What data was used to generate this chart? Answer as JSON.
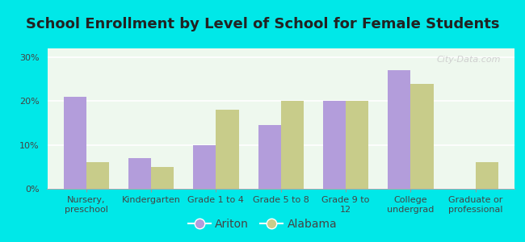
{
  "title": "School Enrollment by Level of School for Female Students",
  "categories": [
    "Nursery,\npreschool",
    "Kindergarten",
    "Grade 1 to 4",
    "Grade 5 to 8",
    "Grade 9 to\n12",
    "College\nundergrad",
    "Graduate or\nprofessional"
  ],
  "ariton": [
    21.0,
    7.0,
    10.0,
    14.5,
    20.0,
    27.0,
    0.0
  ],
  "alabama": [
    6.0,
    5.0,
    18.0,
    20.0,
    20.0,
    24.0,
    6.0
  ],
  "ariton_color": "#b39ddb",
  "alabama_color": "#c8cc8a",
  "background_outer": "#00e8e8",
  "background_inner": "#eef8ee",
  "yticks": [
    0,
    10,
    20,
    30
  ],
  "ytick_labels": [
    "0%",
    "10%",
    "20%",
    "30%"
  ],
  "ylim": [
    0,
    32
  ],
  "title_fontsize": 13,
  "tick_fontsize": 8,
  "legend_fontsize": 10,
  "watermark": "City-Data.com"
}
